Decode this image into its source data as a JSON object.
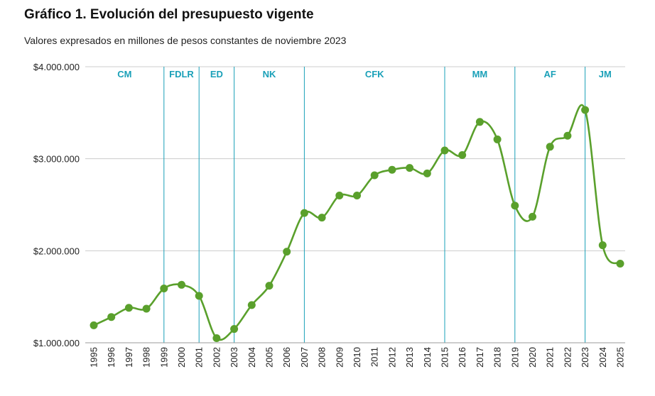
{
  "chart_data": {
    "type": "line",
    "title": "Gráfico 1. Evolución del presupuesto vigente",
    "subtitle": "Valores expresados en millones de pesos constantes de noviembre 2023",
    "xlabel": "",
    "ylabel": "",
    "ylim": [
      1000000,
      4000000
    ],
    "yticks": [
      {
        "value": 1000000,
        "label": "$1.000.000"
      },
      {
        "value": 2000000,
        "label": "$2.000.000"
      },
      {
        "value": 3000000,
        "label": "$3.000.000"
      },
      {
        "value": 4000000,
        "label": "$4.000.000"
      }
    ],
    "grid": true,
    "colors": {
      "line": "#5aa02c",
      "marker": "#5aa02c",
      "divider": "#1aa0b8",
      "period_label": "#1aa0b8",
      "grid": "#cccccc"
    },
    "series": [
      {
        "name": "Presupuesto vigente",
        "x": [
          "1995",
          "1996",
          "1997",
          "1998",
          "1999",
          "2000",
          "2001",
          "2002",
          "2003",
          "2004",
          "2005",
          "2006",
          "2007",
          "2008",
          "2009",
          "2010",
          "2011",
          "2012",
          "2013",
          "2014",
          "2015",
          "2016",
          "2017",
          "2018",
          "2019",
          "2020",
          "2021",
          "2022",
          "2023",
          "2024",
          "2025"
        ],
        "values": [
          1190000,
          1280000,
          1380000,
          1370000,
          1590000,
          1630000,
          1510000,
          1050000,
          1150000,
          1410000,
          1620000,
          1990000,
          2410000,
          2360000,
          2600000,
          2600000,
          2820000,
          2880000,
          2900000,
          2840000,
          3090000,
          3040000,
          3400000,
          3210000,
          2490000,
          2370000,
          3130000,
          3250000,
          3530000,
          2060000,
          1860000
        ]
      }
    ],
    "periods": [
      {
        "label": "CM",
        "from": "1995",
        "to": "1999"
      },
      {
        "label": "FDLR",
        "from": "1999",
        "to": "2001"
      },
      {
        "label": "ED",
        "from": "2001",
        "to": "2003"
      },
      {
        "label": "NK",
        "from": "2003",
        "to": "2007"
      },
      {
        "label": "CFK",
        "from": "2007",
        "to": "2015"
      },
      {
        "label": "MM",
        "from": "2015",
        "to": "2019"
      },
      {
        "label": "AF",
        "from": "2019",
        "to": "2023"
      },
      {
        "label": "JM",
        "from": "2023",
        "to": "2025"
      }
    ]
  }
}
